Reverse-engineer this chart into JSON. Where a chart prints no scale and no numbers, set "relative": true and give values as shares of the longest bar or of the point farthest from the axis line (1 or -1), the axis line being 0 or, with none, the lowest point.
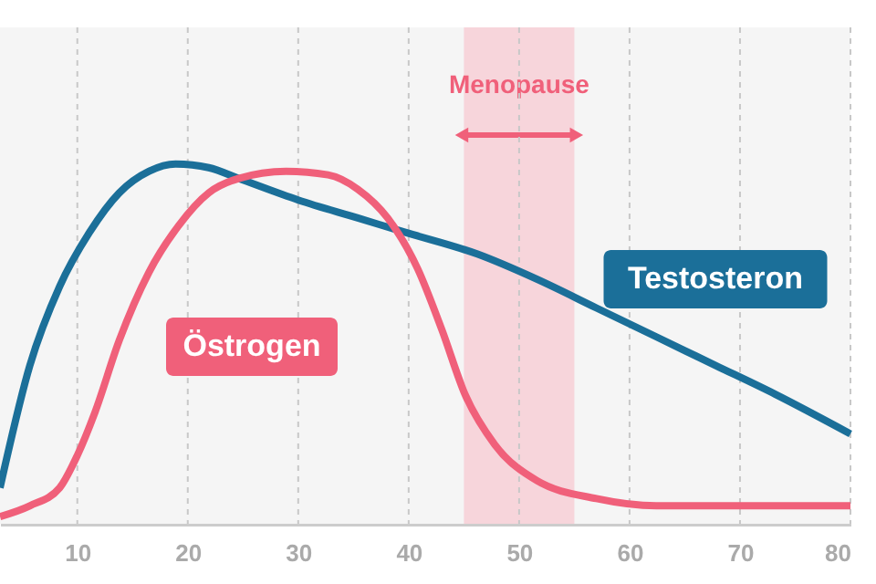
{
  "chart_data": {
    "type": "line",
    "relative": true,
    "xlim": [
      3,
      80
    ],
    "xticks": [
      10,
      20,
      30,
      40,
      50,
      60,
      70,
      80
    ],
    "grid": "x",
    "bands": [
      {
        "axis": "x",
        "from": 45,
        "to": 55,
        "label": "Menopause",
        "color": "#f8bfc9"
      }
    ],
    "series": [
      {
        "name": "Testosteron",
        "color": "#1b6f99",
        "x": [
          3.0,
          5.7,
          8.4,
          11.1,
          13.8,
          16.5,
          18.9,
          21.9,
          24.6,
          30.0,
          35.4,
          39.7,
          46.2,
          51.6,
          57.0,
          62.4,
          67.8,
          73.2,
          80
        ],
        "values": [
          0.1,
          0.44,
          0.66,
          0.81,
          0.92,
          0.98,
          1.0,
          0.99,
          0.96,
          0.9,
          0.85,
          0.81,
          0.75,
          0.68,
          0.6,
          0.52,
          0.44,
          0.36,
          0.25
        ]
      },
      {
        "name": "Östrogen",
        "color": "#f0607a",
        "x": [
          3.0,
          5.7,
          8.4,
          10.0,
          11.6,
          13.8,
          16.5,
          19.2,
          21.9,
          24.6,
          28.9,
          32.7,
          35.4,
          38.1,
          40.8,
          43.0,
          45.1,
          47.8,
          51.6,
          57.0,
          62.4,
          80
        ],
        "values": [
          0.02,
          0.05,
          0.1,
          0.19,
          0.31,
          0.51,
          0.7,
          0.83,
          0.92,
          0.96,
          0.98,
          0.97,
          0.93,
          0.85,
          0.71,
          0.54,
          0.36,
          0.22,
          0.12,
          0.07,
          0.05,
          0.05
        ]
      }
    ]
  }
}
